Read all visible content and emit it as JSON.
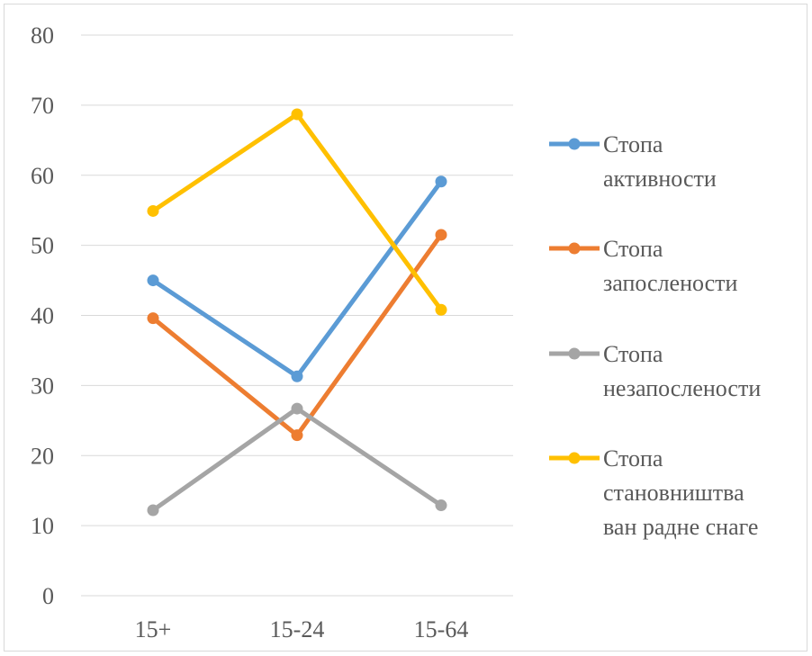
{
  "chart_data": {
    "type": "line",
    "categories": [
      "15+",
      "15-24",
      "15-64"
    ],
    "ylim": [
      0,
      80
    ],
    "yticks": [
      0,
      10,
      20,
      30,
      40,
      50,
      60,
      70,
      80
    ],
    "grid": true,
    "legend_position": "right",
    "series": [
      {
        "name": [
          "Стопа",
          "активности"
        ],
        "color": "#5b9bd5",
        "values": [
          45.0,
          31.3,
          59.1
        ]
      },
      {
        "name": [
          "Стопа",
          "запослености"
        ],
        "color": "#ed7d31",
        "values": [
          39.6,
          22.9,
          51.5
        ]
      },
      {
        "name": [
          "Стопа",
          "незапослености"
        ],
        "color": "#a5a5a5",
        "values": [
          12.2,
          26.7,
          12.9
        ]
      },
      {
        "name": [
          "Стопа",
          "становништва",
          "ван радне снаге"
        ],
        "color": "#ffc000",
        "values": [
          54.9,
          68.7,
          40.8
        ]
      }
    ]
  }
}
